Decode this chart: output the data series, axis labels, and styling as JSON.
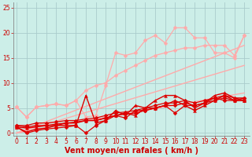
{
  "background_color": "#cceee8",
  "grid_color": "#aacccc",
  "x_label": "Vent moyen/en rafales ( km/h )",
  "x_ticks": [
    0,
    1,
    2,
    3,
    4,
    5,
    6,
    7,
    8,
    9,
    10,
    11,
    12,
    13,
    14,
    15,
    16,
    17,
    18,
    19,
    20,
    21,
    22,
    23
  ],
  "y_ticks": [
    0,
    5,
    10,
    15,
    20,
    25
  ],
  "ylim": [
    -0.5,
    26
  ],
  "xlim": [
    -0.3,
    23.5
  ],
  "lines": [
    {
      "color": "#ffaaaa",
      "x": [
        0,
        23
      ],
      "y": [
        0.0,
        8.0
      ],
      "marker": null,
      "markersize": 0,
      "linewidth": 1.0
    },
    {
      "color": "#ffaaaa",
      "x": [
        0,
        23
      ],
      "y": [
        0.0,
        13.5
      ],
      "marker": null,
      "markersize": 0,
      "linewidth": 1.0
    },
    {
      "color": "#ffaaaa",
      "x": [
        0,
        23
      ],
      "y": [
        0.0,
        17.5
      ],
      "marker": null,
      "markersize": 0,
      "linewidth": 1.0
    },
    {
      "color": "#ffaaaa",
      "x": [
        0,
        1,
        2,
        3,
        4,
        5,
        6,
        7,
        8,
        9,
        10,
        11,
        12,
        13,
        14,
        15,
        16,
        17,
        18,
        19,
        20,
        21,
        22,
        23
      ],
      "y": [
        5.2,
        3.2,
        5.2,
        5.5,
        5.8,
        5.5,
        6.5,
        3.2,
        3.5,
        9.5,
        16.0,
        15.5,
        16.0,
        18.5,
        19.5,
        18.0,
        21.0,
        21.0,
        19.0,
        19.0,
        16.0,
        16.0,
        15.0,
        19.5
      ],
      "marker": "D",
      "markersize": 2.5,
      "linewidth": 0.9
    },
    {
      "color": "#ffaaaa",
      "x": [
        0,
        1,
        2,
        3,
        4,
        5,
        6,
        7,
        8,
        9,
        10,
        11,
        12,
        13,
        14,
        15,
        16,
        17,
        18,
        19,
        20,
        21,
        22,
        23
      ],
      "y": [
        5.2,
        3.2,
        5.2,
        5.5,
        5.8,
        5.5,
        6.5,
        8.5,
        9.5,
        10.0,
        11.5,
        12.5,
        13.5,
        14.5,
        15.5,
        16.0,
        16.5,
        17.0,
        17.0,
        17.5,
        17.5,
        17.5,
        15.5,
        19.5
      ],
      "marker": "D",
      "markersize": 2.5,
      "linewidth": 0.9
    },
    {
      "color": "#dd0000",
      "x": [
        0,
        1,
        2,
        3,
        4,
        5,
        6,
        7,
        8,
        9,
        10,
        11,
        12,
        13,
        14,
        15,
        16,
        17,
        18,
        19,
        20,
        21,
        22,
        23
      ],
      "y": [
        1.2,
        0.2,
        0.8,
        1.0,
        1.5,
        1.5,
        1.5,
        7.5,
        2.0,
        2.5,
        4.5,
        3.5,
        5.5,
        5.0,
        6.5,
        7.5,
        7.5,
        6.5,
        5.0,
        6.0,
        7.5,
        8.0,
        7.0,
        6.5
      ],
      "marker": "^",
      "markersize": 2.8,
      "linewidth": 1.0
    },
    {
      "color": "#dd0000",
      "x": [
        0,
        1,
        2,
        3,
        4,
        5,
        6,
        7,
        8,
        9,
        10,
        11,
        12,
        13,
        14,
        15,
        16,
        17,
        18,
        19,
        20,
        21,
        22,
        23
      ],
      "y": [
        1.2,
        1.0,
        1.2,
        1.5,
        1.5,
        2.0,
        2.0,
        2.5,
        2.5,
        3.0,
        3.5,
        4.0,
        3.5,
        5.0,
        5.0,
        5.5,
        6.5,
        5.5,
        4.5,
        5.5,
        6.5,
        7.5,
        6.5,
        6.5
      ],
      "marker": "^",
      "markersize": 2.8,
      "linewidth": 1.0
    },
    {
      "color": "#dd0000",
      "x": [
        0,
        1,
        2,
        3,
        4,
        5,
        6,
        7,
        8,
        9,
        10,
        11,
        12,
        13,
        14,
        15,
        16,
        17,
        18,
        19,
        20,
        21,
        22,
        23
      ],
      "y": [
        1.2,
        0.0,
        0.5,
        0.8,
        1.0,
        1.2,
        1.5,
        0.0,
        1.5,
        2.5,
        3.5,
        3.0,
        4.5,
        4.5,
        5.0,
        5.5,
        4.0,
        5.5,
        5.5,
        6.0,
        7.0,
        6.5,
        6.5,
        6.5
      ],
      "marker": "D",
      "markersize": 2.5,
      "linewidth": 0.9
    },
    {
      "color": "#dd0000",
      "x": [
        0,
        1,
        2,
        3,
        4,
        5,
        6,
        7,
        8,
        9,
        10,
        11,
        12,
        13,
        14,
        15,
        16,
        17,
        18,
        19,
        20,
        21,
        22,
        23
      ],
      "y": [
        1.5,
        1.2,
        1.5,
        1.5,
        1.8,
        2.0,
        2.2,
        2.5,
        2.5,
        3.0,
        3.5,
        3.8,
        4.0,
        4.5,
        5.0,
        5.5,
        5.5,
        6.0,
        5.5,
        6.0,
        6.5,
        7.0,
        6.5,
        7.0
      ],
      "marker": "D",
      "markersize": 2.5,
      "linewidth": 0.9
    },
    {
      "color": "#dd0000",
      "x": [
        0,
        1,
        2,
        3,
        4,
        5,
        6,
        7,
        8,
        9,
        10,
        11,
        12,
        13,
        14,
        15,
        16,
        17,
        18,
        19,
        20,
        21,
        22,
        23
      ],
      "y": [
        1.5,
        1.5,
        2.0,
        2.0,
        2.2,
        2.5,
        2.5,
        2.8,
        3.0,
        3.5,
        4.0,
        4.2,
        4.5,
        5.0,
        5.5,
        6.0,
        6.0,
        6.5,
        6.0,
        6.5,
        7.0,
        7.5,
        7.0,
        7.0
      ],
      "marker": "D",
      "markersize": 2.5,
      "linewidth": 0.9
    }
  ],
  "tick_fontsize": 5.5,
  "label_fontsize": 7,
  "label_color": "#cc0000",
  "tick_color": "#cc0000",
  "spine_color": "#888888"
}
